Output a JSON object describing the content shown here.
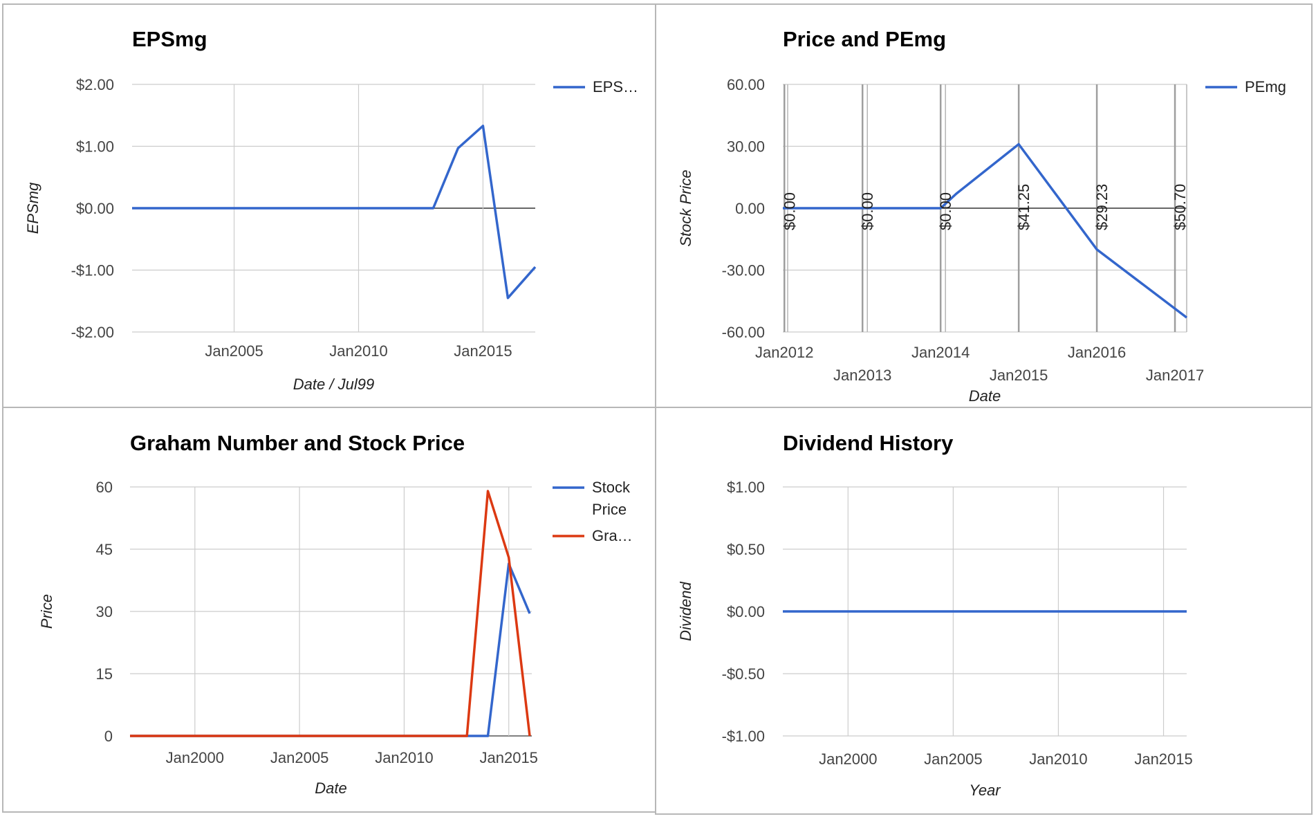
{
  "colors": {
    "blue": "#3366cc",
    "red": "#dc3912",
    "grid": "#cccccc",
    "baseline": "#333333"
  },
  "chart_data": [
    {
      "type": "line",
      "title": "EPSmg",
      "xlabel": "Date / Jul99",
      "ylabel": "EPSmg",
      "xlim": [
        2000.9,
        2017.1
      ],
      "ylim": [
        -2,
        2
      ],
      "x_ticks": [
        {
          "v": 2005,
          "label": "Jan2005"
        },
        {
          "v": 2010,
          "label": "Jan2010"
        },
        {
          "v": 2015,
          "label": "Jan2015"
        }
      ],
      "y_ticks": [
        {
          "v": 2,
          "label": "$2.00"
        },
        {
          "v": 1,
          "label": "$1.00"
        },
        {
          "v": 0,
          "label": "$0.00"
        },
        {
          "v": -1,
          "label": "-$1.00"
        },
        {
          "v": -2,
          "label": "-$2.00"
        }
      ],
      "series": [
        {
          "name": "EPS…",
          "color": "#3366cc",
          "x": [
            2000.9,
            2013,
            2014,
            2015,
            2016,
            2017.1
          ],
          "values": [
            0,
            0,
            0.97,
            1.33,
            -1.45,
            -0.95
          ]
        }
      ],
      "legend": "right"
    },
    {
      "type": "line",
      "title": "Price and PEmg",
      "xlabel": "Date",
      "ylabel": "Stock Price",
      "xlim": [
        2011.98,
        2017.15
      ],
      "ylim": [
        -60,
        60
      ],
      "x_ticks": [
        {
          "v": 2012,
          "label": "Jan2012",
          "row": 0
        },
        {
          "v": 2013,
          "label": "Jan2013",
          "row": 1
        },
        {
          "v": 2014,
          "label": "Jan2014",
          "row": 0
        },
        {
          "v": 2015,
          "label": "Jan2015",
          "row": 1
        },
        {
          "v": 2016,
          "label": "Jan2016",
          "row": 0
        },
        {
          "v": 2017,
          "label": "Jan2017",
          "row": 1
        }
      ],
      "y_ticks": [
        {
          "v": 60,
          "label": "60.00"
        },
        {
          "v": 30,
          "label": "30.00"
        },
        {
          "v": 0,
          "label": "0.00"
        },
        {
          "v": -30,
          "label": "-30.00"
        },
        {
          "v": -60,
          "label": "-60.00"
        }
      ],
      "series": [
        {
          "name": "PEmg",
          "color": "#3366cc",
          "x": [
            2011.98,
            2012,
            2013,
            2014,
            2014.2,
            2015,
            2016,
            2017.15
          ],
          "values": [
            0,
            0,
            0,
            0,
            7,
            31,
            -20,
            -53
          ]
        }
      ],
      "annotations": [
        {
          "x": 2012,
          "label": "$0.00"
        },
        {
          "x": 2013,
          "label": "$0.00"
        },
        {
          "x": 2014,
          "label": "$0.00"
        },
        {
          "x": 2015,
          "label": "$41.25"
        },
        {
          "x": 2016,
          "label": "$29.23"
        },
        {
          "x": 2017,
          "label": "$50.70"
        }
      ],
      "legend": "right"
    },
    {
      "type": "line",
      "title": "Graham Number and Stock Price",
      "xlabel": "Date",
      "ylabel": "Price",
      "xlim": [
        1996.9,
        2016.1
      ],
      "ylim": [
        0,
        60
      ],
      "x_ticks": [
        {
          "v": 2000,
          "label": "Jan2000"
        },
        {
          "v": 2005,
          "label": "Jan2005"
        },
        {
          "v": 2010,
          "label": "Jan2010"
        },
        {
          "v": 2015,
          "label": "Jan2015"
        }
      ],
      "y_ticks": [
        {
          "v": 60,
          "label": "60"
        },
        {
          "v": 45,
          "label": "45"
        },
        {
          "v": 30,
          "label": "30"
        },
        {
          "v": 15,
          "label": "15"
        },
        {
          "v": 0,
          "label": "0"
        }
      ],
      "series": [
        {
          "name": "Stock Price",
          "color": "#3366cc",
          "x": [
            1996.9,
            2014,
            2015,
            2016
          ],
          "values": [
            0,
            0,
            41.5,
            29.5
          ]
        },
        {
          "name": "Gra…",
          "color": "#dc3912",
          "x": [
            1996.9,
            2013,
            2014,
            2015,
            2016
          ],
          "values": [
            0,
            0,
            59,
            43,
            0
          ]
        }
      ],
      "legend": "right"
    },
    {
      "type": "line",
      "title": "Dividend History",
      "xlabel": "Year",
      "ylabel": "Dividend",
      "xlim": [
        1996.9,
        2016.1
      ],
      "ylim": [
        -1,
        1
      ],
      "x_ticks": [
        {
          "v": 2000,
          "label": "Jan2000"
        },
        {
          "v": 2005,
          "label": "Jan2005"
        },
        {
          "v": 2010,
          "label": "Jan2010"
        },
        {
          "v": 2015,
          "label": "Jan2015"
        }
      ],
      "y_ticks": [
        {
          "v": 1,
          "label": "$1.00"
        },
        {
          "v": 0.5,
          "label": "$0.50"
        },
        {
          "v": 0,
          "label": "$0.00"
        },
        {
          "v": -0.5,
          "label": "-$0.50"
        },
        {
          "v": -1,
          "label": "-$1.00"
        }
      ],
      "series": [
        {
          "name": "",
          "color": "#3366cc",
          "x": [
            1996.9,
            2016.1
          ],
          "values": [
            0,
            0
          ]
        }
      ],
      "legend": "none"
    }
  ]
}
